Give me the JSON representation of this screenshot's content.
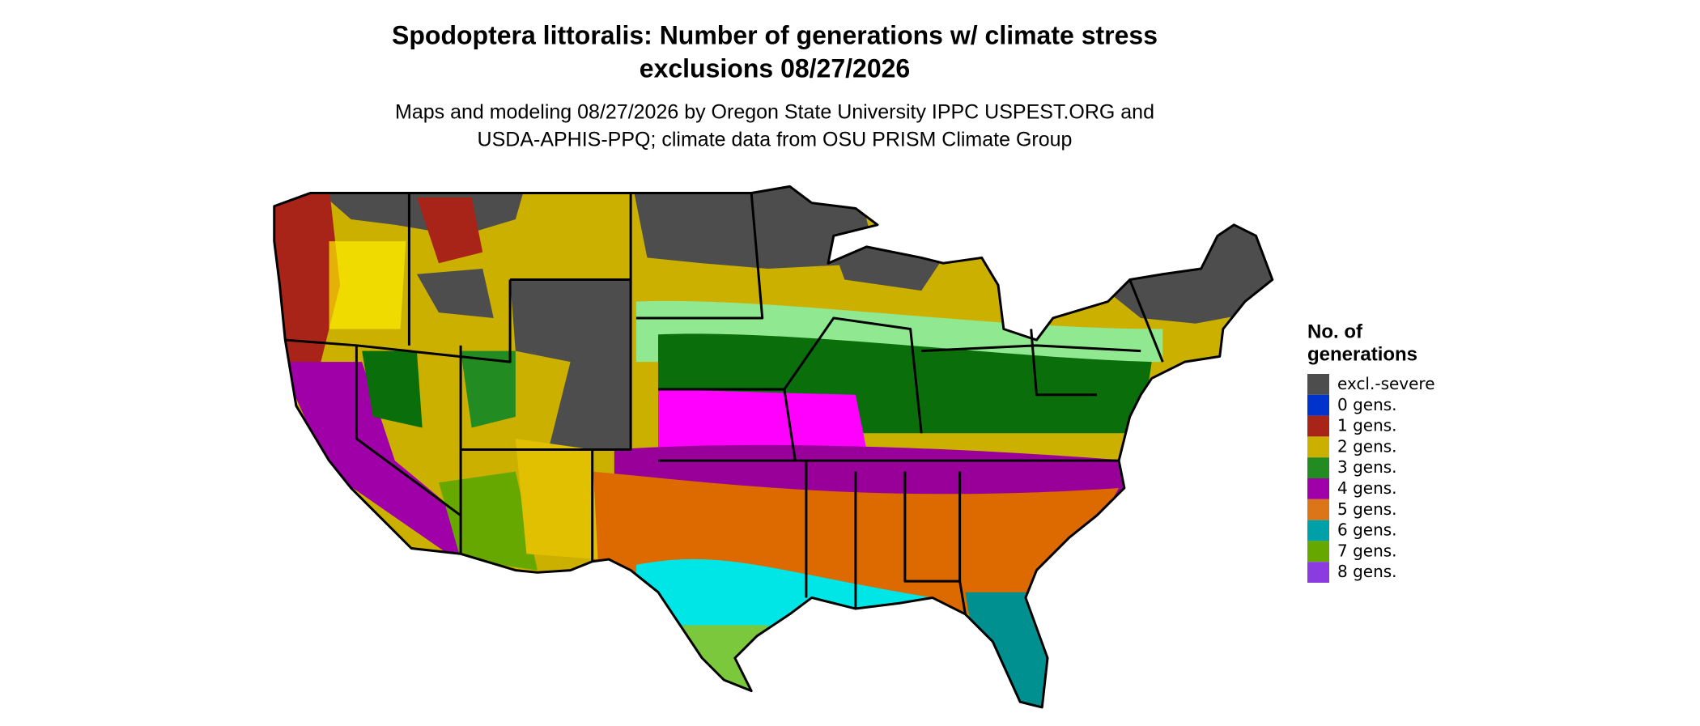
{
  "header": {
    "title": [
      "Spodoptera littoralis: Number of generations w/ climate stress",
      "exclusions 08/27/2026"
    ],
    "subtitle": [
      "Maps and modeling 08/27/2026 by Oregon State University IPPC USPEST.ORG and",
      "USDA-APHIS-PPQ; climate data from OSU PRISM Climate Group"
    ]
  },
  "legend": {
    "title": [
      "No. of",
      "generations"
    ],
    "items": [
      {
        "label": "excl.-severe",
        "color": "#4d4d4d"
      },
      {
        "label": "0 gens.",
        "color": "#0033cc"
      },
      {
        "label": "1 gens.",
        "color": "#a82418"
      },
      {
        "label": "2 gens.",
        "color": "#ccb000"
      },
      {
        "label": "3 gens.",
        "color": "#228b22"
      },
      {
        "label": "4 gens.",
        "color": "#a000a8"
      },
      {
        "label": "5 gens.",
        "color": "#dc7418"
      },
      {
        "label": "6 gens.",
        "color": "#00a0a8"
      },
      {
        "label": "7 gens.",
        "color": "#66a800"
      },
      {
        "label": "8 gens.",
        "color": "#8a3ce0"
      }
    ]
  }
}
